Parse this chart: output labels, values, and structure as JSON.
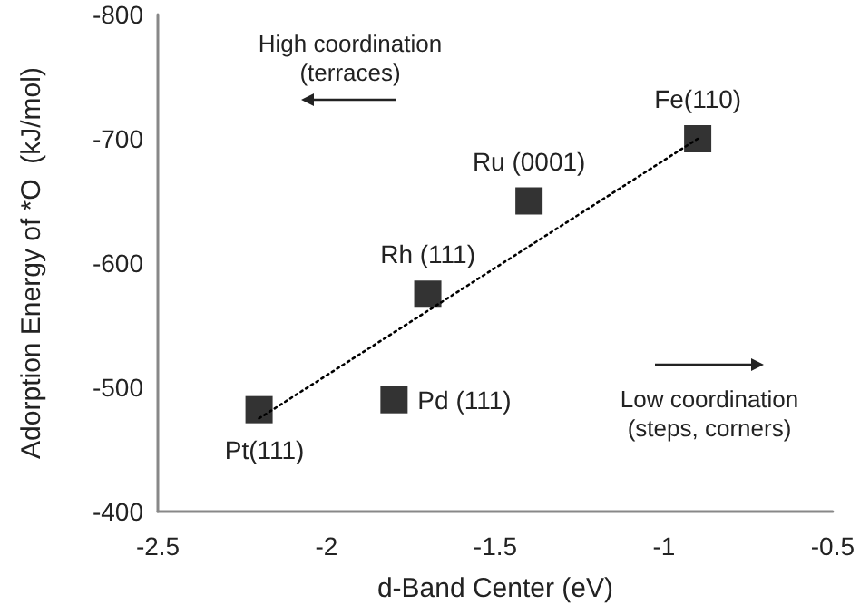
{
  "chart_data": {
    "type": "scatter",
    "xlabel": "d-Band Center (eV)",
    "ylabel": "Adorption Energy of *O  (kJ/mol)",
    "xlim": [
      -2.5,
      -0.5
    ],
    "xticks": [
      -2.5,
      -2,
      -1.5,
      -1,
      -0.5
    ],
    "ylim": [
      -400,
      -800
    ],
    "yticks": [
      -400,
      -500,
      -600,
      -700,
      -800
    ],
    "grid": false,
    "series": [
      {
        "color": "#000000",
        "marker": "square",
        "x": [
          -2.2,
          -1.8,
          -1.7,
          -1.4,
          -0.9
        ],
        "values": [
          -482,
          -490,
          -575,
          -650,
          -700
        ]
      },
      {
        "type": "line",
        "color": "#000000",
        "line_style": "dotted",
        "marker": "none",
        "x": [
          -2.2,
          -0.9
        ],
        "values": [
          -475,
          -700
        ]
      }
    ],
    "annotations": [
      {
        "text": "Pt(111)",
        "x": -2.2,
        "y": -482
      },
      {
        "text": "Pd (111)",
        "x": -1.8,
        "y": -490
      },
      {
        "text": "Rh (111)",
        "x": -1.7,
        "y": -575
      },
      {
        "text": "Ru (0001)",
        "x": -1.4,
        "y": -650
      },
      {
        "text": "Fe(110)",
        "x": -0.9,
        "y": -700
      },
      "High coordination\n(terraces)",
      "Low coordination\n(steps, corners)"
    ]
  }
}
